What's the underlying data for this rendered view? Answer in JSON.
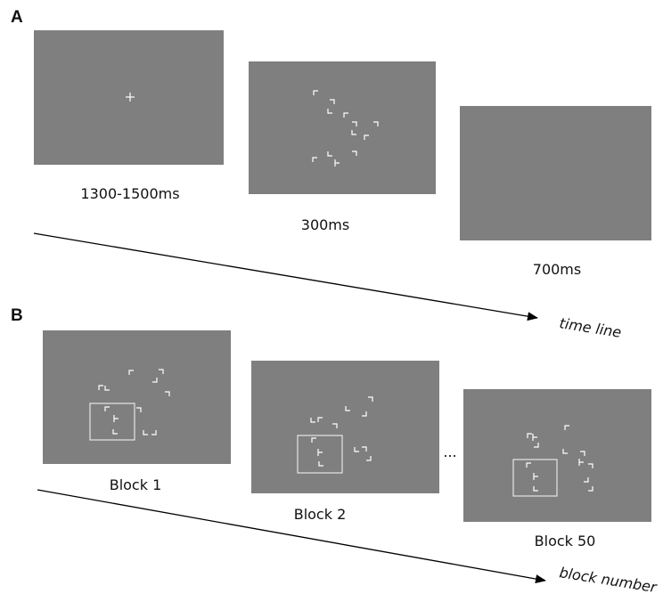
{
  "panels": {
    "a": {
      "label": "A",
      "frames": [
        {
          "id": "fixation",
          "caption": "1300-1500ms"
        },
        {
          "id": "search-array",
          "caption": "300ms"
        },
        {
          "id": "blank",
          "caption": "700ms"
        }
      ],
      "axis_label": "time line"
    },
    "b": {
      "label": "B",
      "frames": [
        {
          "id": "block-1",
          "caption": "Block 1"
        },
        {
          "id": "block-2",
          "caption": "Block 2"
        },
        {
          "id": "block-50",
          "caption": "Block 50"
        }
      ],
      "ellipsis": "...",
      "axis_label": "block number"
    }
  },
  "colors": {
    "screen": "#7f7f7f",
    "glyph": "#ffffff",
    "line": "#000000",
    "background": "#ffffff"
  }
}
